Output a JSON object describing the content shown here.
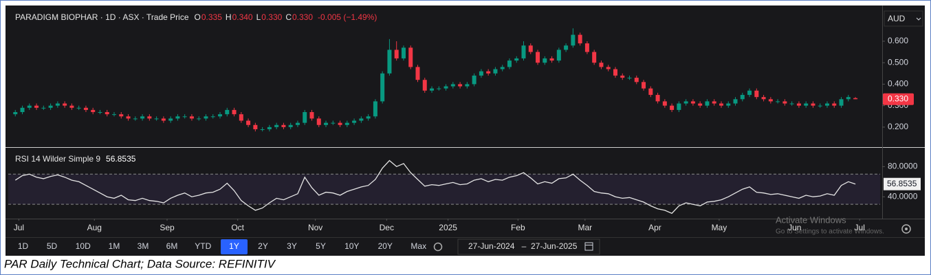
{
  "chart_data": [
    {
      "type": "candlestick",
      "title": "PARADIGM BIOPHAR · 1D · ASX · Trade Price",
      "legend": [
        {
          "key": "O",
          "value": "0.335"
        },
        {
          "key": "H",
          "value": "0.340"
        },
        {
          "key": "L",
          "value": "0.330"
        },
        {
          "key": "C",
          "value": "0.330"
        }
      ],
      "change": "-0.005 (−1.49%)",
      "currency": "AUD",
      "price_label": "0.330",
      "up_color": "#089981",
      "down_color": "#f23645",
      "xlim": [
        -1,
        122.5
      ],
      "ylim": [
        0.11,
        0.76
      ],
      "yticks": [
        {
          "value": 0.2,
          "label": "0.200"
        },
        {
          "value": 0.3,
          "label": "0.300"
        },
        {
          "value": 0.4,
          "label": "0.400"
        },
        {
          "value": 0.5,
          "label": "0.500"
        },
        {
          "value": 0.6,
          "label": "0.600"
        }
      ],
      "x": [
        0,
        1,
        2,
        3,
        4,
        5,
        6,
        7,
        8,
        9,
        10,
        11,
        12,
        13,
        14,
        15,
        16,
        17,
        18,
        19,
        20,
        21,
        22,
        23,
        24,
        25,
        26,
        27,
        28,
        29,
        30,
        31,
        32,
        33,
        34,
        35,
        36,
        37,
        38,
        39,
        40,
        41,
        42,
        43,
        44,
        45,
        46,
        47,
        48,
        49,
        50,
        51,
        52,
        53,
        54,
        55,
        56,
        57,
        58,
        59,
        60,
        61,
        62,
        63,
        64,
        65,
        66,
        67,
        68,
        69,
        70,
        71,
        72,
        73,
        74,
        75,
        76,
        77,
        78,
        79,
        80,
        81,
        82,
        83,
        84,
        85,
        86,
        87,
        88,
        89,
        90,
        91,
        92,
        93,
        94,
        95,
        96,
        97,
        98,
        99,
        100,
        101,
        102,
        103,
        104,
        105,
        106,
        107,
        108,
        109,
        110,
        111,
        112,
        113,
        114,
        115,
        116,
        117,
        118,
        119
      ],
      "open": [
        0.26,
        0.27,
        0.29,
        0.3,
        0.29,
        0.29,
        0.3,
        0.31,
        0.3,
        0.29,
        0.29,
        0.28,
        0.27,
        0.27,
        0.26,
        0.26,
        0.25,
        0.24,
        0.24,
        0.25,
        0.24,
        0.24,
        0.23,
        0.24,
        0.25,
        0.25,
        0.24,
        0.24,
        0.25,
        0.25,
        0.26,
        0.28,
        0.26,
        0.23,
        0.21,
        0.19,
        0.19,
        0.2,
        0.21,
        0.2,
        0.21,
        0.22,
        0.27,
        0.24,
        0.21,
        0.22,
        0.22,
        0.21,
        0.22,
        0.23,
        0.24,
        0.25,
        0.32,
        0.45,
        0.56,
        0.52,
        0.57,
        0.48,
        0.42,
        0.37,
        0.38,
        0.38,
        0.39,
        0.4,
        0.39,
        0.4,
        0.44,
        0.46,
        0.45,
        0.47,
        0.48,
        0.51,
        0.52,
        0.58,
        0.55,
        0.5,
        0.52,
        0.51,
        0.56,
        0.58,
        0.63,
        0.59,
        0.55,
        0.5,
        0.48,
        0.47,
        0.44,
        0.43,
        0.43,
        0.41,
        0.38,
        0.35,
        0.32,
        0.3,
        0.28,
        0.31,
        0.32,
        0.31,
        0.3,
        0.32,
        0.31,
        0.3,
        0.31,
        0.33,
        0.35,
        0.37,
        0.34,
        0.33,
        0.32,
        0.32,
        0.31,
        0.31,
        0.3,
        0.31,
        0.3,
        0.3,
        0.31,
        0.3,
        0.33,
        0.335
      ],
      "high": [
        0.28,
        0.3,
        0.31,
        0.31,
        0.3,
        0.31,
        0.32,
        0.32,
        0.31,
        0.3,
        0.3,
        0.29,
        0.28,
        0.28,
        0.27,
        0.27,
        0.26,
        0.25,
        0.26,
        0.26,
        0.25,
        0.25,
        0.25,
        0.26,
        0.26,
        0.26,
        0.25,
        0.26,
        0.26,
        0.27,
        0.29,
        0.29,
        0.27,
        0.24,
        0.22,
        0.2,
        0.21,
        0.22,
        0.22,
        0.22,
        0.23,
        0.28,
        0.28,
        0.25,
        0.23,
        0.23,
        0.23,
        0.23,
        0.24,
        0.25,
        0.26,
        0.33,
        0.46,
        0.61,
        0.6,
        0.58,
        0.58,
        0.49,
        0.43,
        0.39,
        0.39,
        0.4,
        0.41,
        0.41,
        0.41,
        0.45,
        0.47,
        0.47,
        0.48,
        0.49,
        0.52,
        0.53,
        0.6,
        0.59,
        0.56,
        0.53,
        0.53,
        0.57,
        0.59,
        0.66,
        0.64,
        0.6,
        0.56,
        0.51,
        0.49,
        0.48,
        0.45,
        0.44,
        0.44,
        0.42,
        0.39,
        0.36,
        0.33,
        0.31,
        0.32,
        0.33,
        0.33,
        0.32,
        0.33,
        0.33,
        0.32,
        0.32,
        0.34,
        0.36,
        0.38,
        0.38,
        0.35,
        0.34,
        0.33,
        0.33,
        0.32,
        0.32,
        0.32,
        0.32,
        0.31,
        0.32,
        0.32,
        0.34,
        0.35,
        0.34
      ],
      "low": [
        0.25,
        0.26,
        0.28,
        0.28,
        0.28,
        0.28,
        0.29,
        0.29,
        0.28,
        0.28,
        0.27,
        0.26,
        0.26,
        0.25,
        0.25,
        0.24,
        0.23,
        0.23,
        0.23,
        0.23,
        0.23,
        0.22,
        0.22,
        0.23,
        0.24,
        0.23,
        0.23,
        0.23,
        0.24,
        0.24,
        0.25,
        0.25,
        0.22,
        0.2,
        0.18,
        0.18,
        0.18,
        0.19,
        0.19,
        0.19,
        0.2,
        0.21,
        0.23,
        0.2,
        0.2,
        0.21,
        0.2,
        0.2,
        0.21,
        0.22,
        0.23,
        0.24,
        0.31,
        0.44,
        0.51,
        0.51,
        0.47,
        0.41,
        0.36,
        0.36,
        0.37,
        0.37,
        0.38,
        0.38,
        0.38,
        0.39,
        0.43,
        0.44,
        0.44,
        0.46,
        0.47,
        0.5,
        0.51,
        0.54,
        0.49,
        0.49,
        0.5,
        0.5,
        0.55,
        0.57,
        0.58,
        0.54,
        0.49,
        0.47,
        0.46,
        0.43,
        0.42,
        0.42,
        0.4,
        0.37,
        0.34,
        0.31,
        0.29,
        0.27,
        0.27,
        0.3,
        0.3,
        0.29,
        0.29,
        0.3,
        0.29,
        0.29,
        0.3,
        0.32,
        0.34,
        0.33,
        0.32,
        0.31,
        0.31,
        0.3,
        0.3,
        0.29,
        0.29,
        0.29,
        0.29,
        0.29,
        0.29,
        0.29,
        0.32,
        0.33
      ],
      "close": [
        0.27,
        0.29,
        0.3,
        0.29,
        0.29,
        0.3,
        0.31,
        0.3,
        0.29,
        0.29,
        0.28,
        0.27,
        0.27,
        0.26,
        0.26,
        0.25,
        0.24,
        0.24,
        0.25,
        0.24,
        0.24,
        0.23,
        0.24,
        0.25,
        0.25,
        0.24,
        0.24,
        0.25,
        0.25,
        0.26,
        0.28,
        0.26,
        0.23,
        0.21,
        0.19,
        0.19,
        0.2,
        0.21,
        0.2,
        0.21,
        0.22,
        0.27,
        0.24,
        0.21,
        0.22,
        0.22,
        0.21,
        0.22,
        0.23,
        0.24,
        0.25,
        0.32,
        0.45,
        0.56,
        0.52,
        0.57,
        0.48,
        0.42,
        0.37,
        0.38,
        0.38,
        0.39,
        0.4,
        0.39,
        0.4,
        0.44,
        0.46,
        0.45,
        0.47,
        0.48,
        0.51,
        0.52,
        0.58,
        0.55,
        0.5,
        0.52,
        0.51,
        0.56,
        0.58,
        0.63,
        0.59,
        0.55,
        0.5,
        0.48,
        0.47,
        0.44,
        0.43,
        0.43,
        0.41,
        0.38,
        0.35,
        0.32,
        0.3,
        0.28,
        0.31,
        0.32,
        0.31,
        0.3,
        0.32,
        0.31,
        0.3,
        0.31,
        0.33,
        0.35,
        0.37,
        0.34,
        0.33,
        0.32,
        0.32,
        0.31,
        0.31,
        0.3,
        0.31,
        0.3,
        0.3,
        0.31,
        0.3,
        0.33,
        0.34,
        0.33
      ]
    },
    {
      "type": "line",
      "title": "RSI 14 Wilder Simple 9",
      "xlim": [
        -1,
        122.5
      ],
      "xticks": [
        {
          "value": 0.5,
          "label": "Jul"
        },
        {
          "value": 11.2,
          "label": "Aug"
        },
        {
          "value": 21.5,
          "label": "Sep"
        },
        {
          "value": 31.5,
          "label": "Oct"
        },
        {
          "value": 42.5,
          "label": "Nov"
        },
        {
          "value": 52.6,
          "label": "Dec"
        },
        {
          "value": 61.3,
          "label": "2025"
        },
        {
          "value": 71.2,
          "label": "Feb"
        },
        {
          "value": 80.7,
          "label": "Mar"
        },
        {
          "value": 90.6,
          "label": "Apr"
        },
        {
          "value": 99.7,
          "label": "May"
        },
        {
          "value": 110.4,
          "label": "Jun"
        },
        {
          "value": 119.6,
          "label": "Jul"
        }
      ],
      "ylim": [
        11,
        104
      ],
      "yticks": [
        {
          "value": 40,
          "label": "40.0000"
        },
        {
          "value": 80,
          "label": "80.0000"
        }
      ],
      "upper_band": 70,
      "lower_band": 30,
      "band_color": "#7e57c2",
      "x": [
        0,
        1,
        2,
        3,
        4,
        5,
        6,
        7,
        8,
        9,
        10,
        11,
        12,
        13,
        14,
        15,
        16,
        17,
        18,
        19,
        20,
        21,
        22,
        23,
        24,
        25,
        26,
        27,
        28,
        29,
        30,
        31,
        32,
        33,
        34,
        35,
        36,
        37,
        38,
        39,
        40,
        41,
        42,
        43,
        44,
        45,
        46,
        47,
        48,
        49,
        50,
        51,
        52,
        53,
        54,
        55,
        56,
        57,
        58,
        59,
        60,
        61,
        62,
        63,
        64,
        65,
        66,
        67,
        68,
        69,
        70,
        71,
        72,
        73,
        74,
        75,
        76,
        77,
        78,
        79,
        80,
        81,
        82,
        83,
        84,
        85,
        86,
        87,
        88,
        89,
        90,
        91,
        92,
        93,
        94,
        95,
        96,
        97,
        98,
        99,
        100,
        101,
        102,
        103,
        104,
        105,
        106,
        107,
        108,
        109,
        110,
        111,
        112,
        113,
        114,
        115,
        116,
        117,
        118,
        119
      ],
      "series": [
        {
          "name": "RSI",
          "color": "#e6e6e6",
          "values": [
            62,
            68,
            70,
            66,
            64,
            67,
            69,
            66,
            62,
            60,
            55,
            50,
            45,
            40,
            38,
            42,
            36,
            35,
            38,
            35,
            34,
            32,
            38,
            42,
            45,
            40,
            42,
            45,
            46,
            50,
            58,
            48,
            35,
            28,
            22,
            25,
            32,
            38,
            36,
            40,
            44,
            66,
            52,
            42,
            46,
            45,
            42,
            47,
            50,
            53,
            55,
            63,
            78,
            88,
            80,
            84,
            72,
            63,
            54,
            56,
            55,
            57,
            59,
            56,
            57,
            62,
            64,
            60,
            63,
            62,
            66,
            68,
            72,
            65,
            57,
            60,
            58,
            64,
            65,
            70,
            62,
            55,
            47,
            45,
            44,
            40,
            38,
            39,
            36,
            33,
            28,
            24,
            22,
            18,
            28,
            32,
            30,
            28,
            33,
            34,
            36,
            40,
            45,
            50,
            53,
            46,
            45,
            43,
            44,
            42,
            40,
            38,
            42,
            40,
            41,
            44,
            42,
            55,
            60,
            56.8535
          ]
        }
      ]
    }
  ],
  "toolbar": {
    "ranges": [
      "1D",
      "5D",
      "10D",
      "1M",
      "3M",
      "6M",
      "YTD",
      "1Y",
      "2Y",
      "3Y",
      "5Y",
      "10Y",
      "20Y",
      "Max"
    ],
    "selected": "1Y",
    "date_from": "27-Jun-2024",
    "date_separator": "–",
    "date_to": "27-Jun-2025"
  },
  "watermark": {
    "title": "Activate Windows",
    "text": "Go to Settings to activate Windows."
  },
  "caption": "PAR Daily Technical Chart; Data Source: REFINITIV"
}
